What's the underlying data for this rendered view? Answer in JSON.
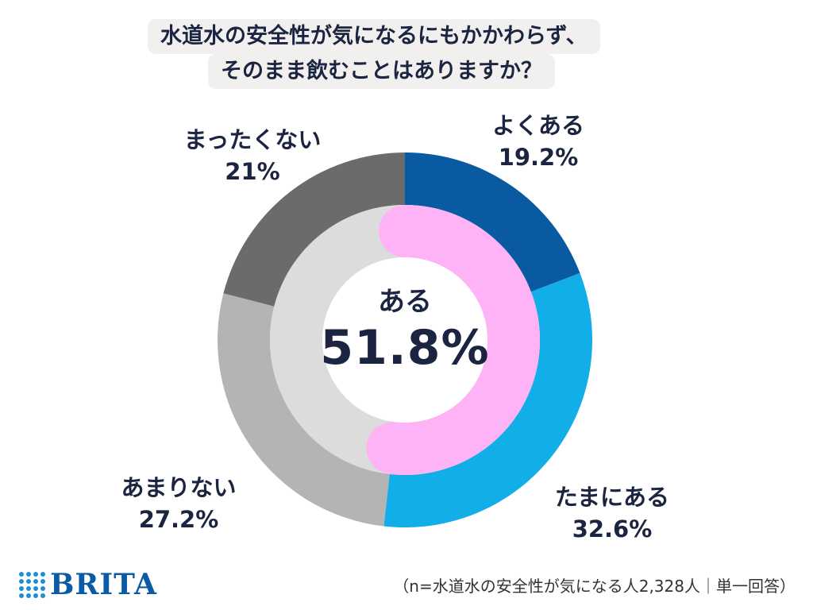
{
  "title_lines": [
    "水道水の安全性が気になるにもかかわらず、",
    "そのまま飲むことはありますか？"
  ],
  "center": {
    "category": "ある",
    "value": "51.8%"
  },
  "footnote": "（n=水道水の安全性が気になる人2,328人｜単一回答）",
  "logo": {
    "text": "BRITA"
  },
  "chart_data": {
    "type": "pie",
    "title": "水道水の安全性が気になるにもかかわらず、そのまま飲むことはありますか？",
    "outer_ring": [
      {
        "label": "よくある",
        "value": 19.2,
        "value_label": "19.2%",
        "color": "#0a5aa2"
      },
      {
        "label": "たまにある",
        "value": 32.6,
        "value_label": "32.6%",
        "color": "#12aee8"
      },
      {
        "label": "あまりない",
        "value": 27.2,
        "value_label": "27.2%",
        "color": "#b4b4b4"
      },
      {
        "label": "まったくない",
        "value": 21,
        "value_label": "21%",
        "color": "#6b6b6b"
      }
    ],
    "inner_ring": [
      {
        "label": "ある",
        "value": 51.8,
        "value_label": "51.8%",
        "color": "#ffb3f7"
      },
      {
        "value": 48.2,
        "color": "#dcdcdc"
      }
    ]
  }
}
